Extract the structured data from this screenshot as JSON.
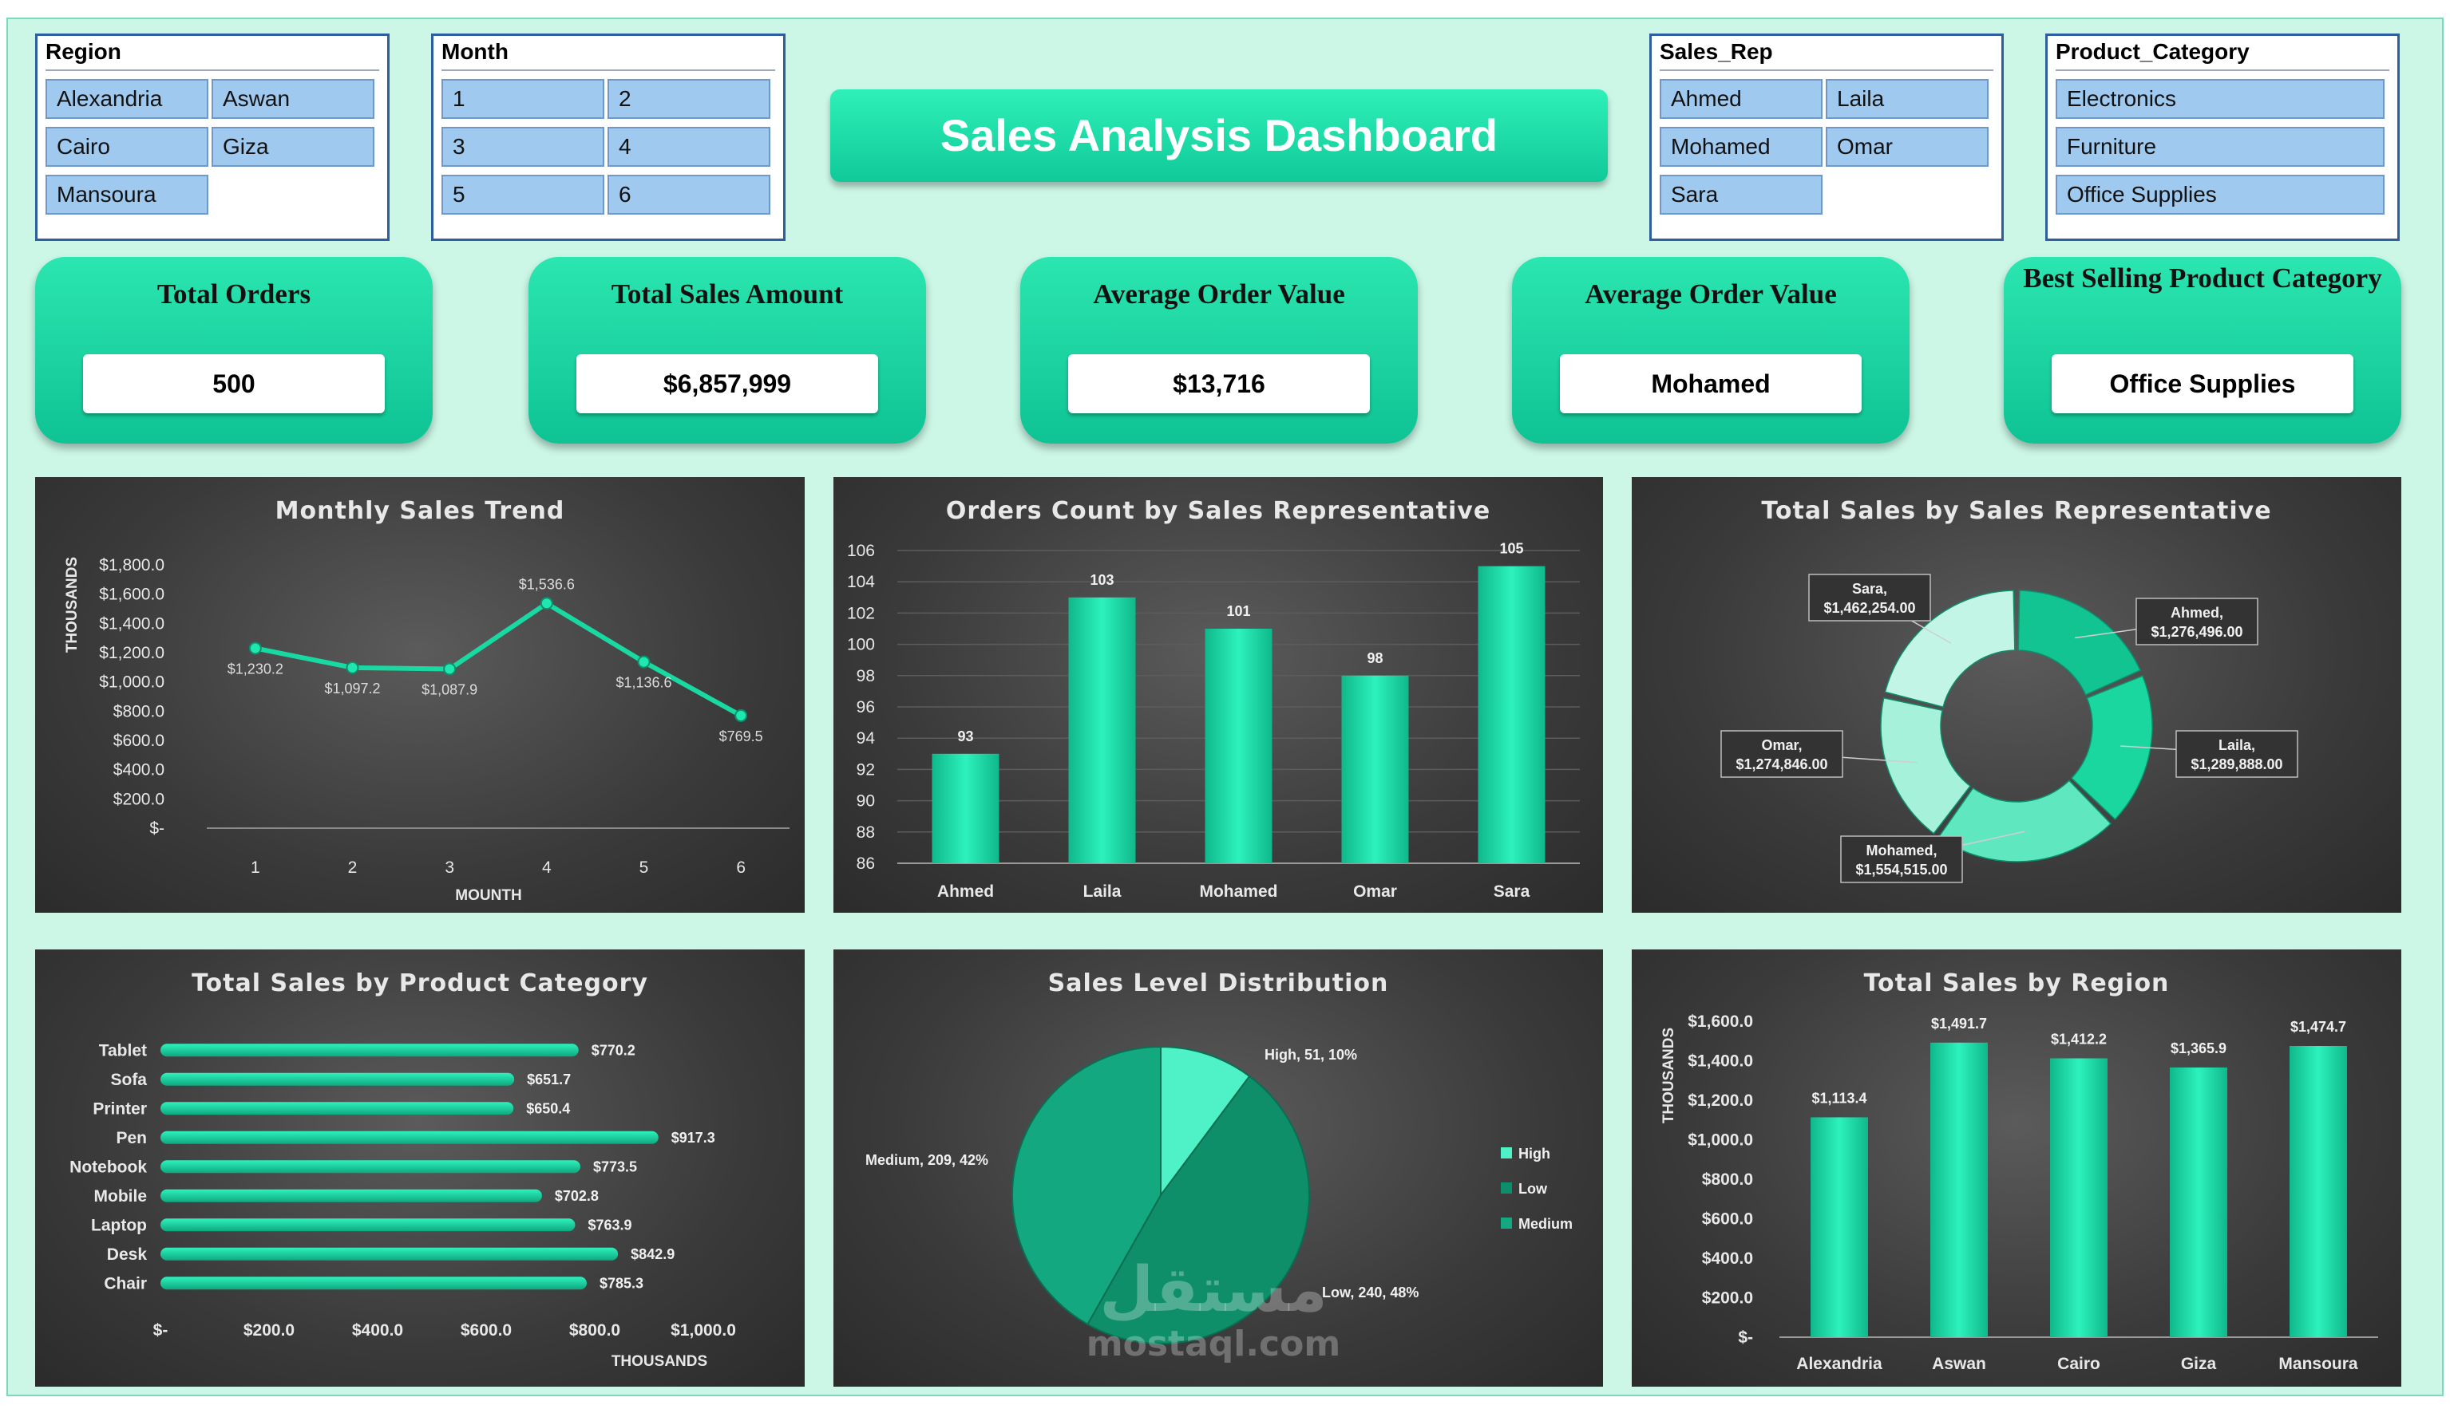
{
  "colors": {
    "accent": "#18d9a4",
    "accent_dark": "#0c9c74",
    "panel": "#3c3c3c",
    "slicer_item": "#9fc9ef"
  },
  "title": "Sales Analysis Dashboard",
  "slicers": {
    "region": {
      "title": "Region",
      "items": [
        "Alexandria",
        "Aswan",
        "Cairo",
        "Giza",
        "Mansoura"
      ]
    },
    "month": {
      "title": "Month",
      "items": [
        "1",
        "2",
        "3",
        "4",
        "5",
        "6"
      ]
    },
    "sales_rep": {
      "title": "Sales_Rep",
      "items": [
        "Ahmed",
        "Laila",
        "Mohamed",
        "Omar",
        "Sara"
      ]
    },
    "product_category": {
      "title": "Product_Category",
      "items": [
        "Electronics",
        "Furniture",
        "Office Supplies"
      ]
    }
  },
  "kpis": [
    {
      "label": "Total Orders",
      "value": "500"
    },
    {
      "label": "Total Sales Amount",
      "value": "$6,857,999"
    },
    {
      "label": "Average Order Value",
      "value": "$13,716"
    },
    {
      "label": "Average Order Value",
      "value": "Mohamed"
    },
    {
      "label": "Best Selling Product Category",
      "value": "Office Supplies"
    }
  ],
  "chart_data": [
    {
      "id": "monthly",
      "type": "line",
      "title": "Monthly Sales Trend",
      "xlabel": "MOUNTH",
      "ylabel": "THOUSANDS",
      "x": [
        1,
        2,
        3,
        4,
        5,
        6
      ],
      "values": [
        1230.2,
        1097.2,
        1087.9,
        1536.6,
        1136.6,
        769.5
      ],
      "data_labels": [
        "$1,230.2",
        "$1,097.2",
        "$1,087.9",
        "$1,536.6",
        "$1,136.6",
        "$769.5"
      ],
      "ylim": [
        0,
        1800
      ],
      "y_ticks": [
        1800,
        1600,
        1400,
        1200,
        1000,
        800,
        600,
        400,
        200,
        0
      ],
      "y_tick_labels": [
        "$1,800.0",
        "$1,600.0",
        "$1,400.0",
        "$1,200.0",
        "$1,000.0",
        "$800.0",
        "$600.0",
        "$400.0",
        "$200.0",
        "$-"
      ]
    },
    {
      "id": "orders_rep",
      "type": "bar",
      "title": "Orders Count by Sales Representative",
      "categories": [
        "Ahmed",
        "Laila",
        "Mohamed",
        "Omar",
        "Sara"
      ],
      "values": [
        93,
        103,
        101,
        98,
        105
      ],
      "data_labels": [
        "93",
        "103",
        "101",
        "98",
        "105"
      ],
      "ylim": [
        86,
        106
      ],
      "y_ticks": [
        106,
        104,
        102,
        100,
        98,
        96,
        94,
        92,
        90,
        88,
        86
      ],
      "y_tick_labels": [
        "106",
        "104",
        "102",
        "100",
        "98",
        "96",
        "94",
        "92",
        "90",
        "88",
        "86"
      ],
      "grid": true
    },
    {
      "id": "sales_rep_donut",
      "type": "pie",
      "title": "Total Sales by Sales Representative",
      "categories": [
        "Ahmed",
        "Laila",
        "Mohamed",
        "Omar",
        "Sara"
      ],
      "values": [
        1276496,
        1289888,
        1554515,
        1274846,
        1462254
      ],
      "label_names": [
        "Ahmed,",
        "Laila,",
        "Mohamed,",
        "Omar,",
        "Sara,"
      ],
      "label_values": [
        "$1,276,496.00",
        "$1,289,888.00",
        "$1,554,515.00",
        "$1,274,846.00",
        "$1,462,254.00"
      ]
    },
    {
      "id": "product",
      "type": "bar",
      "orientation": "horizontal",
      "title": "Total Sales by Product Category",
      "xlabel": "THOUSANDS",
      "categories": [
        "Tablet",
        "Sofa",
        "Printer",
        "Pen",
        "Notebook",
        "Mobile",
        "Laptop",
        "Desk",
        "Chair"
      ],
      "values": [
        770.2,
        651.7,
        650.4,
        917.3,
        773.5,
        702.8,
        763.9,
        842.9,
        785.3
      ],
      "data_labels": [
        "$770.2",
        "$651.7",
        "$650.4",
        "$917.3",
        "$773.5",
        "$702.8",
        "$763.9",
        "$842.9",
        "$785.3"
      ],
      "xlim": [
        0,
        1000
      ],
      "x_ticks": [
        0,
        200,
        400,
        600,
        800,
        1000
      ],
      "x_tick_labels": [
        "$-",
        "$200.0",
        "$400.0",
        "$600.0",
        "$800.0",
        "$1,000.0"
      ]
    },
    {
      "id": "level",
      "type": "pie",
      "title": "Sales Level Distribution",
      "categories": [
        "High",
        "Low",
        "Medium"
      ],
      "values": [
        51,
        240,
        209
      ],
      "data_labels": [
        "High, 51, 10%",
        "Low, 240, 48%",
        "Medium, 209, 42%"
      ],
      "legend": "right"
    },
    {
      "id": "region",
      "type": "bar",
      "title": "Total Sales by Region",
      "ylabel": "THOUSANDS",
      "categories": [
        "Alexandria",
        "Aswan",
        "Cairo",
        "Giza",
        "Mansoura"
      ],
      "values": [
        1113.4,
        1491.7,
        1412.2,
        1365.9,
        1474.7
      ],
      "data_labels": [
        "$1,113.4",
        "$1,491.7",
        "$1,412.2",
        "$1,365.9",
        "$1,474.7"
      ],
      "ylim": [
        0,
        1600
      ],
      "y_ticks": [
        1600,
        1400,
        1200,
        1000,
        800,
        600,
        400,
        200,
        0
      ],
      "y_tick_labels": [
        "$1,600.0",
        "$1,400.0",
        "$1,200.0",
        "$1,000.0",
        "$800.0",
        "$600.0",
        "$400.0",
        "$200.0",
        "$-"
      ]
    }
  ],
  "watermark": {
    "arabic": "مستقل",
    "latin": "mostaql.com"
  }
}
